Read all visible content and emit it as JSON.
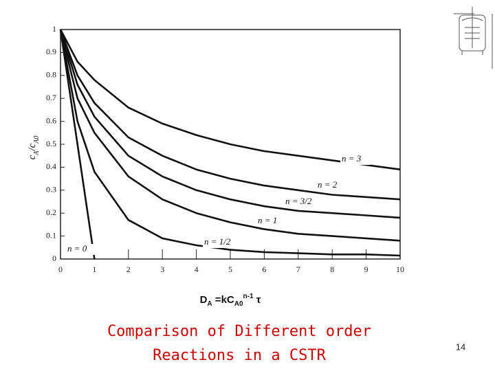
{
  "chart_data": {
    "type": "line",
    "title": [
      "Comparison of Different order",
      "Reactions in a CSTR"
    ],
    "title_color": "#cc0000",
    "page_number": "14",
    "x_label": [
      "D",
      "A",
      " =kC",
      "A0",
      "n-1",
      " τ"
    ],
    "y_label": [
      "c",
      "A",
      "/c",
      "A0"
    ],
    "x": [
      0,
      0.5,
      1,
      2,
      3,
      4,
      5,
      6,
      7,
      8,
      9,
      10
    ],
    "xlim": [
      0,
      10
    ],
    "xticks": [
      0,
      1,
      2,
      3,
      4,
      5,
      6,
      7,
      8,
      9,
      10
    ],
    "ylim": [
      0,
      1
    ],
    "yticks": [
      0,
      0.1,
      0.2,
      0.3,
      0.4,
      0.5,
      0.6,
      0.7,
      0.8,
      0.9,
      1
    ],
    "series": [
      {
        "name": "n = 3",
        "color": "#111111",
        "values": [
          1,
          0.86,
          0.78,
          0.66,
          0.59,
          0.54,
          0.5,
          0.47,
          0.45,
          0.43,
          0.41,
          0.39
        ]
      },
      {
        "name": "n = 2",
        "color": "#111111",
        "values": [
          1,
          0.8,
          0.68,
          0.53,
          0.45,
          0.39,
          0.35,
          0.32,
          0.3,
          0.28,
          0.27,
          0.26
        ]
      },
      {
        "name": "n = 3/2",
        "color": "#111111",
        "values": [
          1,
          0.76,
          0.62,
          0.45,
          0.36,
          0.3,
          0.26,
          0.23,
          0.21,
          0.2,
          0.19,
          0.18
        ]
      },
      {
        "name": "n = 1",
        "color": "#111111",
        "values": [
          1,
          0.7,
          0.55,
          0.36,
          0.26,
          0.2,
          0.16,
          0.13,
          0.11,
          0.1,
          0.09,
          0.08
        ]
      },
      {
        "name": "n = 1/2",
        "color": "#111111",
        "values": [
          1,
          0.6,
          0.38,
          0.17,
          0.09,
          0.06,
          0.04,
          0.03,
          0.025,
          0.02,
          0.02,
          0.015
        ]
      },
      {
        "name": "n = 0",
        "color": "#111111",
        "values": [
          1,
          0.5,
          0,
          null,
          null,
          null,
          null,
          null,
          null,
          null,
          null,
          null
        ]
      }
    ]
  }
}
